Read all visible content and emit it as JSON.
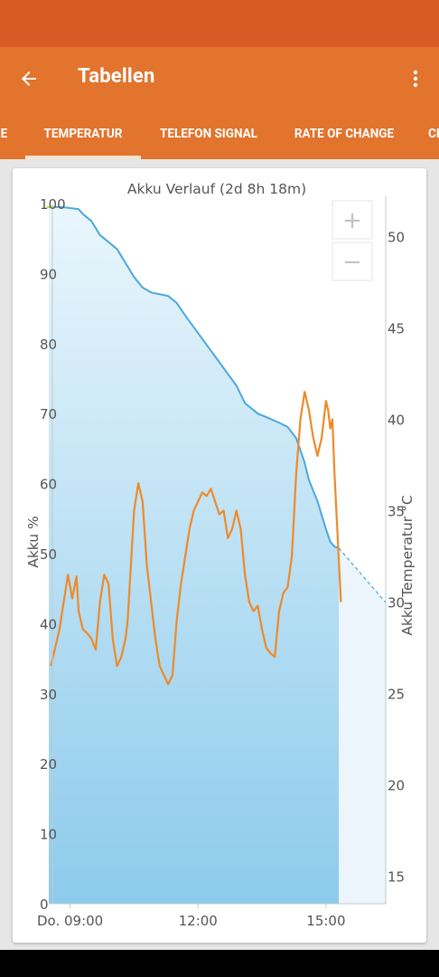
{
  "app_bar": {
    "title": "Tabellen",
    "back_icon": "arrow-left-icon",
    "menu_icon": "more-vert-icon"
  },
  "tabs": [
    {
      "label": "RE",
      "selected": false
    },
    {
      "label": "TEMPERATUR",
      "selected": true
    },
    {
      "label": "TELEFON SIGNAL",
      "selected": false
    },
    {
      "label": "RATE OF CHANGE",
      "selected": false
    },
    {
      "label": "CH",
      "selected": false
    }
  ],
  "chart_controls": {
    "zoom_in_label": "+",
    "zoom_out_label": "−"
  },
  "colors": {
    "primary": "#e2742d",
    "status_bar": "#d65b25",
    "battery_line": "#4aa8dc",
    "temperature_line": "#ee8a2a"
  },
  "chart_data": {
    "type": "line",
    "title": "Akku Verlauf (2d 8h 18m)",
    "x_ticks": [
      "Do. 09:00",
      "12:00",
      "15:00"
    ],
    "x_tick_hours": [
      9,
      12,
      15
    ],
    "xlim_hours": [
      8.5,
      16.4
    ],
    "y_left": {
      "label": "Akku %",
      "range": [
        0,
        100
      ],
      "ticks": [
        "0",
        "10",
        "20",
        "30",
        "40",
        "50",
        "60",
        "70",
        "80",
        "90",
        "100"
      ]
    },
    "y_right": {
      "label": "Akku Temperatur °C",
      "range": [
        13.5,
        51.8
      ],
      "ticks": [
        "15",
        "20",
        "25",
        "30",
        "35",
        "40",
        "45",
        "50"
      ]
    },
    "battery_series": {
      "name": "Akku %",
      "x": [
        8.5,
        8.8,
        9.2,
        9.3,
        9.5,
        9.7,
        9.9,
        10.1,
        10.3,
        10.5,
        10.7,
        10.9,
        11.3,
        11.5,
        11.7,
        12.0,
        12.3,
        12.6,
        12.9,
        13.1,
        13.4,
        13.6,
        13.9,
        14.1,
        14.3,
        14.5,
        14.6,
        14.8,
        14.9,
        15.0,
        15.1,
        15.2,
        15.3
      ],
      "values": [
        99.5,
        99.5,
        99.2,
        98.5,
        97.5,
        95.5,
        94.5,
        93.5,
        91.5,
        89.5,
        88,
        87.3,
        86.8,
        85.8,
        84,
        81.5,
        79,
        76.5,
        74,
        71.5,
        70,
        69.5,
        68.7,
        68.1,
        66.5,
        63,
        60.5,
        57.5,
        55.5,
        53.5,
        51.7,
        51,
        50.8
      ],
      "forecast": {
        "x": [
          15.3,
          16.4
        ],
        "values": [
          50.8,
          43
        ]
      }
    },
    "temperature_series": {
      "name": "Akku Temperatur °C",
      "x": [
        8.55,
        8.65,
        8.75,
        8.85,
        8.95,
        9.05,
        9.15,
        9.2,
        9.25,
        9.3,
        9.4,
        9.5,
        9.6,
        9.7,
        9.8,
        9.9,
        9.95,
        10.0,
        10.1,
        10.2,
        10.3,
        10.35,
        10.4,
        10.5,
        10.6,
        10.7,
        10.8,
        10.9,
        11.0,
        11.1,
        11.2,
        11.3,
        11.4,
        11.5,
        11.6,
        11.7,
        11.8,
        11.9,
        12.0,
        12.1,
        12.2,
        12.3,
        12.4,
        12.5,
        12.6,
        12.7,
        12.8,
        12.9,
        13.0,
        13.1,
        13.2,
        13.3,
        13.4,
        13.5,
        13.6,
        13.7,
        13.8,
        13.9,
        14.0,
        14.1,
        14.2,
        14.3,
        14.4,
        14.5,
        14.6,
        14.7,
        14.8,
        14.9,
        15.0,
        15.05,
        15.1,
        15.15,
        15.2,
        15.35
      ],
      "values": [
        26.5,
        27.5,
        28.5,
        30,
        31.5,
        30.2,
        31.4,
        29.5,
        29,
        28.5,
        28.3,
        28,
        27.4,
        30,
        31.5,
        31,
        29.5,
        28,
        26.5,
        27,
        28,
        29,
        31,
        35,
        36.5,
        35.5,
        32,
        30,
        28,
        26.5,
        26,
        25.5,
        26,
        29,
        31,
        32.5,
        34,
        35,
        35.5,
        36,
        35.8,
        36.2,
        35.5,
        34.8,
        35,
        33.5,
        34,
        35,
        34,
        31.5,
        30,
        29.5,
        29.8,
        28.5,
        27.5,
        27.2,
        27,
        29.5,
        30.5,
        30.8,
        32.5,
        37,
        40,
        41.5,
        40.5,
        39,
        38,
        39,
        41,
        40.5,
        39.5,
        40,
        37,
        30
      ]
    },
    "grid": false,
    "legend": "none"
  }
}
